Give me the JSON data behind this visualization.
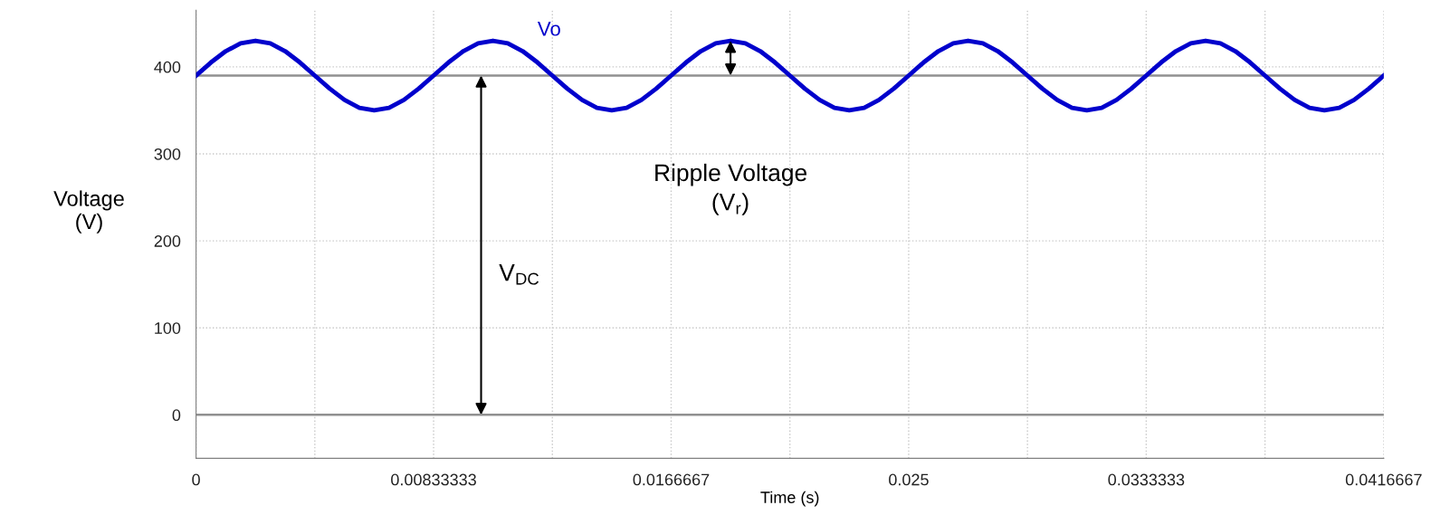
{
  "chart_data": {
    "type": "line",
    "xlabel": "Time (s)",
    "ylabel": "Voltage\n(V)",
    "x": [
      0,
      0.00052083,
      0.00104167,
      0.0015625,
      0.00208333,
      0.00260417,
      0.003125,
      0.00364583,
      0.00416667,
      0.0046875,
      0.00520833,
      0.00572917,
      0.00625,
      0.00677083,
      0.00729167,
      0.0078125,
      0.00833333,
      0.00885417,
      0.009375,
      0.00989583,
      0.0104167,
      0.0109375,
      0.0114583,
      0.0119792,
      0.0125,
      0.0130208,
      0.0135417,
      0.0140625,
      0.0145833,
      0.0151042,
      0.015625,
      0.0161458,
      0.0166667,
      0.0171875,
      0.0177083,
      0.0182292,
      0.01875,
      0.0192708,
      0.0197917,
      0.0203125,
      0.0208333,
      0.0213542,
      0.021875,
      0.0223958,
      0.0229167,
      0.0234375,
      0.0239583,
      0.0244792,
      0.025,
      0.0255208,
      0.0260417,
      0.0265625,
      0.0270833,
      0.0276042,
      0.028125,
      0.0286458,
      0.0291667,
      0.0296875,
      0.0302083,
      0.0307292,
      0.03125,
      0.0317708,
      0.0322917,
      0.0328125,
      0.0333333,
      0.0338542,
      0.034375,
      0.0348958,
      0.0354167,
      0.0359375,
      0.0364583,
      0.0369792,
      0.0375,
      0.0380208,
      0.0385417,
      0.0390625,
      0.0395833,
      0.0401042,
      0.040625,
      0.0411458,
      0.0416667
    ],
    "series": [
      {
        "name": "Vo",
        "color": "#0000cc",
        "values": [
          390,
          405,
          418,
          427,
          430,
          427,
          418,
          405,
          390,
          375,
          362,
          353,
          350,
          353,
          362,
          375,
          390,
          405,
          418,
          427,
          430,
          427,
          418,
          405,
          390,
          375,
          362,
          353,
          350,
          353,
          362,
          375,
          390,
          405,
          418,
          427,
          430,
          427,
          418,
          405,
          390,
          375,
          362,
          353,
          350,
          353,
          362,
          375,
          390,
          405,
          418,
          427,
          430,
          427,
          418,
          405,
          390,
          375,
          362,
          353,
          350,
          353,
          362,
          375,
          390,
          405,
          418,
          427,
          430,
          427,
          418,
          405,
          390,
          375,
          362,
          353,
          350,
          353,
          362,
          375,
          390
        ]
      }
    ],
    "xlim": [
      0,
      0.0416667
    ],
    "ylim": [
      -50,
      465
    ],
    "xticks": [
      0,
      {
        "value": 0.00416667,
        "label": null
      },
      0.00833333,
      {
        "value": 0.0125,
        "label": null
      },
      0.0166667,
      {
        "value": 0.0208333,
        "label": null
      },
      0.025,
      {
        "value": 0.0291667,
        "label": null
      },
      0.0333333,
      {
        "value": 0.0375,
        "label": null
      },
      0.0416667
    ],
    "yticks": [
      0,
      100,
      200,
      300,
      400
    ],
    "grid": true,
    "marker": "none",
    "line_style": "solid",
    "legend": false,
    "ref_lines": [
      {
        "axis": "y",
        "value": 0,
        "color": "#909090"
      },
      {
        "axis": "y",
        "value": 390,
        "color": "#909090"
      }
    ],
    "annotations": [
      "V$_{DC}$",
      "Ripple Voltage\n(V$_{r}$)"
    ]
  }
}
